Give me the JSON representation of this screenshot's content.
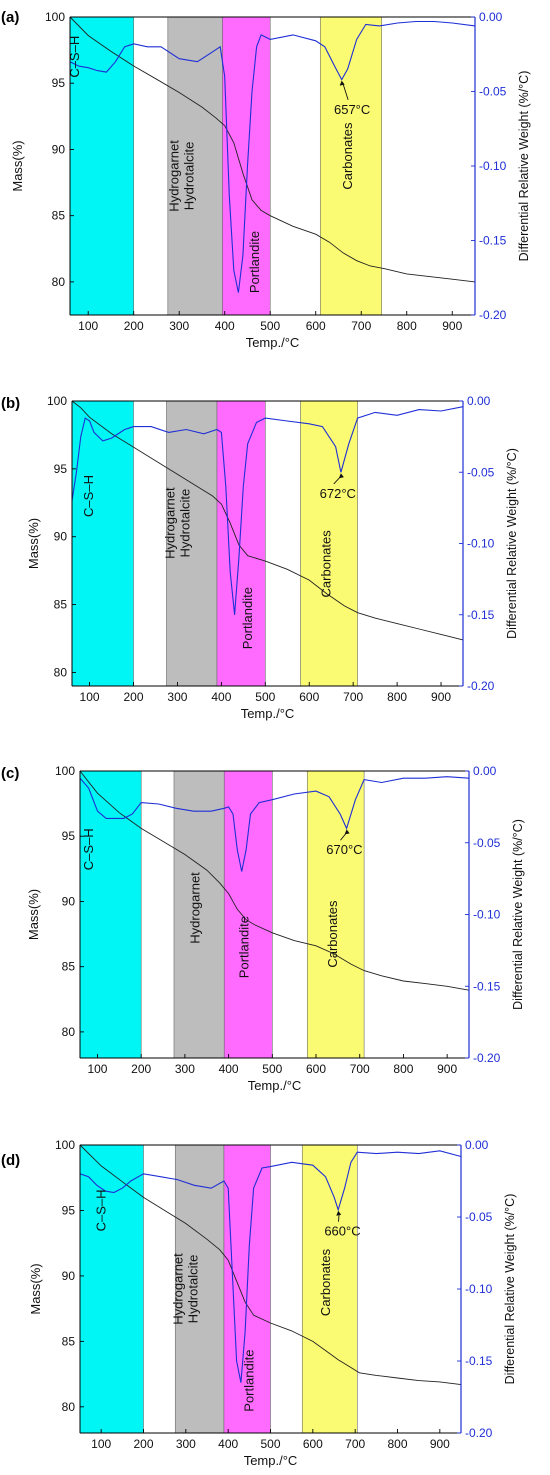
{
  "chart_data": [
    {
      "panel_label": "(a)",
      "type": "line",
      "xlabel": "Temp./°C",
      "ylabel_left": "Mass(%)",
      "ylabel_right": "Differential Relative Weight (%/°C)",
      "xlim": [
        60,
        950
      ],
      "ylim_left": [
        77.5,
        100
      ],
      "ylim_right": [
        -0.2,
        0.0
      ],
      "xticks": [
        100,
        200,
        300,
        400,
        500,
        600,
        700,
        800,
        900
      ],
      "yticks_left": [
        80,
        85,
        90,
        95,
        100
      ],
      "yticks_right": [
        -0.2,
        -0.15,
        -0.1,
        -0.05,
        0.0
      ],
      "ytick_labels_right": [
        "-0.20",
        "-0.15",
        "-0.10",
        "-0.05",
        "0.00"
      ],
      "colors": {
        "mass": "#222222",
        "dtg": "#1f2fd6"
      },
      "bands": [
        {
          "label": "C–S–H",
          "from": 60,
          "to": 200,
          "color": "#00f5f5",
          "label_pos": [
            80,
            97
          ]
        },
        {
          "label": "Hydrogarnet\nHydrotalcite",
          "from": 275,
          "to": 395,
          "color": "#bdbdbd",
          "label_pos": [
            315,
            88
          ]
        },
        {
          "label": "Portlandite",
          "from": 395,
          "to": 500,
          "color": "#ff6bff",
          "label_pos": [
            475,
            81.5
          ]
        },
        {
          "label": "Carbonates",
          "from": 610,
          "to": 745,
          "color": "#fbfb73",
          "label_pos": [
            680,
            89.5
          ]
        }
      ],
      "annotations": [
        {
          "text": "657°C",
          "x": 657,
          "y": -0.042,
          "text_pos": [
            680,
            -0.065
          ]
        }
      ],
      "series": [
        {
          "role": "mass",
          "axis": "left",
          "x": [
            60,
            100,
            150,
            200,
            250,
            300,
            350,
            380,
            400,
            420,
            440,
            460,
            480,
            500,
            550,
            600,
            630,
            660,
            690,
            720,
            750,
            800,
            850,
            900,
            950
          ],
          "values": [
            100,
            98.6,
            97.4,
            96.3,
            95.3,
            94.3,
            93.2,
            92.4,
            91.8,
            90.5,
            88.2,
            86.2,
            85.4,
            85.0,
            84.2,
            83.6,
            83.0,
            82.2,
            81.6,
            81.2,
            81.0,
            80.6,
            80.4,
            80.2,
            80.0
          ]
        },
        {
          "role": "dtg",
          "axis": "right",
          "x": [
            60,
            80,
            100,
            120,
            140,
            160,
            180,
            200,
            230,
            260,
            300,
            340,
            370,
            390,
            400,
            410,
            420,
            430,
            440,
            450,
            460,
            470,
            480,
            500,
            550,
            600,
            620,
            640,
            657,
            670,
            690,
            710,
            740,
            780,
            820,
            860,
            900,
            950
          ],
          "values": [
            -0.03,
            -0.033,
            -0.034,
            -0.036,
            -0.037,
            -0.03,
            -0.02,
            -0.018,
            -0.02,
            -0.02,
            -0.028,
            -0.03,
            -0.024,
            -0.02,
            -0.04,
            -0.12,
            -0.17,
            -0.185,
            -0.16,
            -0.1,
            -0.05,
            -0.02,
            -0.012,
            -0.015,
            -0.012,
            -0.016,
            -0.02,
            -0.032,
            -0.042,
            -0.035,
            -0.015,
            -0.005,
            -0.006,
            -0.004,
            -0.003,
            -0.003,
            -0.004,
            -0.006
          ]
        }
      ]
    },
    {
      "panel_label": "(b)",
      "type": "line",
      "xlabel": "Temp./°C",
      "ylabel_left": "Mass(%)",
      "ylabel_right": "Differential Relative Weight (%/°C)",
      "xlim": [
        60,
        950
      ],
      "ylim_left": [
        79,
        100
      ],
      "ylim_right": [
        -0.2,
        0.0
      ],
      "xticks": [
        100,
        200,
        300,
        400,
        500,
        600,
        700,
        800,
        900
      ],
      "yticks_left": [
        80,
        85,
        90,
        95,
        100
      ],
      "yticks_right": [
        -0.2,
        -0.15,
        -0.1,
        -0.05,
        0.0
      ],
      "ytick_labels_right": [
        "-0.20",
        "-0.15",
        "-0.10",
        "-0.05",
        "0.00"
      ],
      "colors": {
        "mass": "#222222",
        "dtg": "#1f2fd6"
      },
      "bands": [
        {
          "label": "C–S–H",
          "from": 60,
          "to": 200,
          "color": "#00f5f5",
          "label_pos": [
            108,
            93
          ]
        },
        {
          "label": "Hydrogarnet\nHydrotalcite",
          "from": 275,
          "to": 390,
          "color": "#bdbdbd",
          "label_pos": [
            310,
            91
          ]
        },
        {
          "label": "Portlandite",
          "from": 390,
          "to": 500,
          "color": "#ff6bff",
          "label_pos": [
            470,
            84
          ]
        },
        {
          "label": "Carbonates",
          "from": 580,
          "to": 710,
          "color": "#fbfb73",
          "label_pos": [
            648,
            88
          ]
        }
      ],
      "annotations": [
        {
          "text": "672°C",
          "x": 672,
          "y": -0.05,
          "text_pos": [
            665,
            -0.068
          ]
        }
      ],
      "series": [
        {
          "role": "mass",
          "axis": "left",
          "x": [
            60,
            80,
            100,
            150,
            200,
            250,
            300,
            350,
            380,
            400,
            420,
            440,
            460,
            500,
            550,
            600,
            640,
            680,
            710,
            750,
            800,
            850,
            900,
            950
          ],
          "values": [
            100,
            99.5,
            98.8,
            97.6,
            96.6,
            95.6,
            94.6,
            93.6,
            93.0,
            92.4,
            91.0,
            89.4,
            88.6,
            88.2,
            87.6,
            86.8,
            85.8,
            84.9,
            84.4,
            84.0,
            83.6,
            83.2,
            82.8,
            82.4
          ]
        },
        {
          "role": "dtg",
          "axis": "right",
          "x": [
            60,
            70,
            80,
            90,
            100,
            110,
            130,
            150,
            180,
            200,
            240,
            280,
            320,
            360,
            390,
            400,
            410,
            420,
            430,
            440,
            450,
            460,
            480,
            500,
            550,
            600,
            630,
            660,
            672,
            690,
            710,
            750,
            800,
            850,
            900,
            950
          ],
          "values": [
            -0.07,
            -0.05,
            -0.025,
            -0.012,
            -0.014,
            -0.022,
            -0.028,
            -0.026,
            -0.02,
            -0.018,
            -0.018,
            -0.022,
            -0.02,
            -0.023,
            -0.02,
            -0.022,
            -0.06,
            -0.12,
            -0.15,
            -0.11,
            -0.06,
            -0.03,
            -0.015,
            -0.012,
            -0.014,
            -0.016,
            -0.018,
            -0.032,
            -0.05,
            -0.03,
            -0.012,
            -0.008,
            -0.01,
            -0.006,
            -0.007,
            -0.004
          ]
        }
      ]
    },
    {
      "panel_label": "(c)",
      "type": "line",
      "xlabel": "Temp./°C",
      "ylabel_left": "Mass(%)",
      "ylabel_right": "Differential Relative Weight (%/°C)",
      "xlim": [
        60,
        950
      ],
      "ylim_left": [
        78,
        100
      ],
      "ylim_right": [
        -0.2,
        0.0
      ],
      "xticks": [
        100,
        200,
        300,
        400,
        500,
        600,
        700,
        800,
        900
      ],
      "yticks_left": [
        80,
        85,
        90,
        95,
        100
      ],
      "yticks_right": [
        -0.2,
        -0.15,
        -0.1,
        -0.05,
        0.0
      ],
      "ytick_labels_right": [
        "-0.20",
        "-0.15",
        "-0.10",
        "-0.05",
        "0.00"
      ],
      "colors": {
        "mass": "#222222",
        "dtg": "#1f2fd6"
      },
      "bands": [
        {
          "label": "C–S–H",
          "from": 60,
          "to": 200,
          "color": "#00f5f5",
          "label_pos": [
            90,
            94
          ]
        },
        {
          "label": "Hydrogarnet",
          "from": 275,
          "to": 390,
          "color": "#bdbdbd",
          "label_pos": [
            333,
            89.5
          ]
        },
        {
          "label": "Portlandite",
          "from": 390,
          "to": 500,
          "color": "#ff6bff",
          "label_pos": [
            445,
            86.5
          ]
        },
        {
          "label": "Carbonates",
          "from": 580,
          "to": 710,
          "color": "#fbfb73",
          "label_pos": [
            648,
            87.5
          ]
        }
      ],
      "annotations": [
        {
          "text": "670°C",
          "x": 670,
          "y": -0.04,
          "text_pos": [
            665,
            -0.058
          ]
        }
      ],
      "series": [
        {
          "role": "mass",
          "axis": "left",
          "x": [
            60,
            100,
            150,
            200,
            250,
            300,
            350,
            380,
            400,
            420,
            440,
            460,
            500,
            550,
            600,
            640,
            680,
            710,
            750,
            800,
            850,
            900,
            950
          ],
          "values": [
            100,
            98.3,
            96.8,
            95.6,
            94.6,
            93.6,
            92.4,
            91.4,
            90.6,
            89.4,
            88.6,
            88.2,
            87.6,
            87.0,
            86.6,
            86.0,
            85.2,
            84.7,
            84.3,
            83.9,
            83.7,
            83.5,
            83.2
          ]
        },
        {
          "role": "dtg",
          "axis": "right",
          "x": [
            60,
            80,
            100,
            120,
            140,
            160,
            180,
            200,
            240,
            280,
            320,
            360,
            390,
            400,
            410,
            420,
            430,
            440,
            450,
            470,
            500,
            550,
            600,
            630,
            655,
            670,
            690,
            710,
            750,
            800,
            850,
            900,
            950
          ],
          "values": [
            -0.005,
            -0.012,
            -0.028,
            -0.033,
            -0.033,
            -0.033,
            -0.03,
            -0.022,
            -0.023,
            -0.026,
            -0.028,
            -0.028,
            -0.026,
            -0.025,
            -0.03,
            -0.055,
            -0.07,
            -0.055,
            -0.03,
            -0.022,
            -0.02,
            -0.016,
            -0.014,
            -0.018,
            -0.03,
            -0.04,
            -0.02,
            -0.006,
            -0.008,
            -0.005,
            -0.005,
            -0.004,
            -0.005
          ]
        }
      ]
    },
    {
      "panel_label": "(d)",
      "type": "line",
      "xlabel": "Temp./°C",
      "ylabel_left": "Mass(%)",
      "ylabel_right": "Differential Relative Weight (%/°C)",
      "xlim": [
        50,
        950
      ],
      "ylim_left": [
        78,
        100
      ],
      "ylim_right": [
        -0.2,
        0.0
      ],
      "xticks": [
        100,
        200,
        300,
        400,
        500,
        600,
        700,
        800,
        900
      ],
      "yticks_left": [
        80,
        85,
        90,
        95,
        100
      ],
      "yticks_right": [
        -0.2,
        -0.15,
        -0.1,
        -0.05,
        0.0
      ],
      "ytick_labels_right": [
        "-0.20",
        "-0.15",
        "-0.10",
        "-0.05",
        "0.00"
      ],
      "colors": {
        "mass": "#222222",
        "dtg": "#1f2fd6"
      },
      "bands": [
        {
          "label": "C–S–H",
          "from": 50,
          "to": 200,
          "color": "#00f5f5",
          "label_pos": [
            110,
            95
          ]
        },
        {
          "label": "Hydrogarnet\nHydrotalcite",
          "from": 275,
          "to": 390,
          "color": "#bdbdbd",
          "label_pos": [
            310,
            89
          ]
        },
        {
          "label": "Portlandite",
          "from": 390,
          "to": 500,
          "color": "#ff6bff",
          "label_pos": [
            460,
            82
          ]
        },
        {
          "label": "Carbonates",
          "from": 575,
          "to": 705,
          "color": "#fbfb73",
          "label_pos": [
            640,
            89.5
          ]
        }
      ],
      "annotations": [
        {
          "text": "660°C",
          "x": 660,
          "y": -0.045,
          "text_pos": [
            670,
            -0.063
          ]
        }
      ],
      "series": [
        {
          "role": "mass",
          "axis": "left",
          "x": [
            50,
            100,
            150,
            200,
            250,
            300,
            350,
            380,
            400,
            420,
            440,
            460,
            500,
            550,
            600,
            630,
            660,
            690,
            710,
            750,
            800,
            850,
            900,
            950
          ],
          "values": [
            100,
            98.4,
            97.2,
            96.0,
            95.0,
            94.0,
            92.8,
            92.0,
            91.2,
            89.6,
            88.0,
            87.0,
            86.4,
            85.8,
            85.0,
            84.3,
            83.6,
            83.0,
            82.6,
            82.4,
            82.2,
            82.0,
            81.9,
            81.7
          ]
        },
        {
          "role": "dtg",
          "axis": "right",
          "x": [
            50,
            70,
            90,
            110,
            130,
            150,
            170,
            200,
            240,
            280,
            320,
            360,
            390,
            400,
            410,
            420,
            430,
            440,
            450,
            460,
            480,
            500,
            550,
            600,
            630,
            650,
            660,
            675,
            690,
            705,
            750,
            800,
            850,
            900,
            950
          ],
          "values": [
            -0.02,
            -0.022,
            -0.028,
            -0.032,
            -0.033,
            -0.03,
            -0.025,
            -0.02,
            -0.022,
            -0.024,
            -0.028,
            -0.03,
            -0.025,
            -0.03,
            -0.09,
            -0.15,
            -0.165,
            -0.13,
            -0.07,
            -0.03,
            -0.016,
            -0.015,
            -0.012,
            -0.014,
            -0.022,
            -0.036,
            -0.045,
            -0.03,
            -0.012,
            -0.005,
            -0.006,
            -0.005,
            -0.006,
            -0.004,
            -0.008
          ]
        }
      ]
    }
  ]
}
